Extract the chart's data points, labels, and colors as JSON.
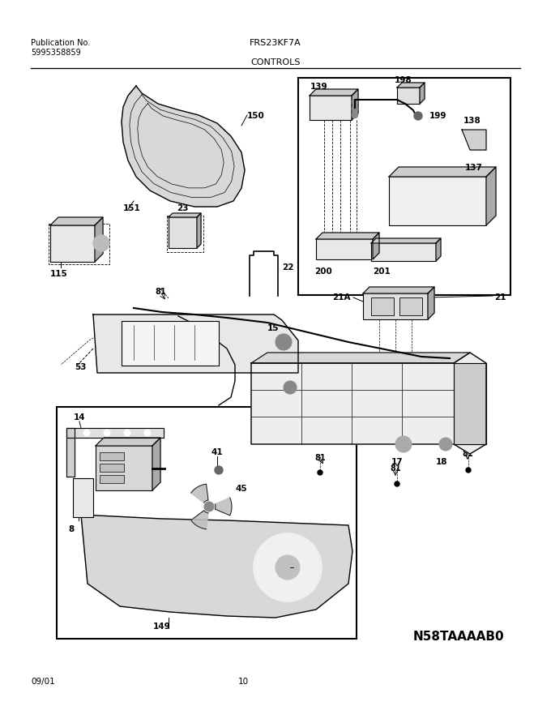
{
  "title": "FRS23KF7A",
  "subtitle": "CONTROLS",
  "pub_label": "Publication No.",
  "pub_number": "5995358859",
  "diagram_id": "N58TAAAAB0",
  "date": "09/01",
  "page": "10",
  "bg_color": "#ffffff",
  "line_color": "#000000",
  "text_color": "#000000",
  "fig_width": 6.8,
  "fig_height": 8.71,
  "dpi": 100
}
